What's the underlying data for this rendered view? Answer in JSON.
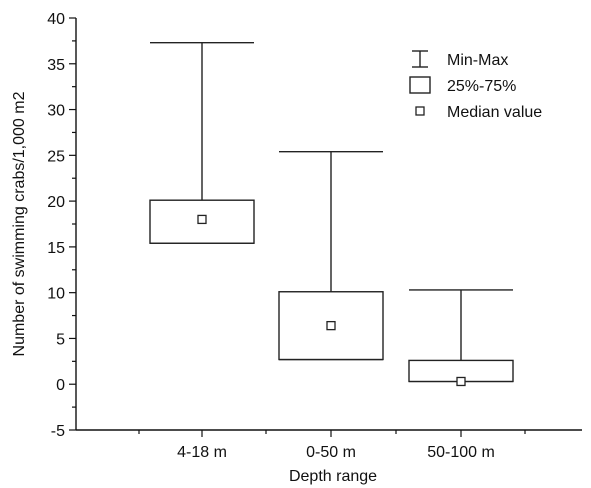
{
  "chart_data": {
    "type": "box",
    "xlabel": "Depth range",
    "ylabel": "Number of swimming crabs/1,000 m2",
    "ylim": [
      -5,
      40
    ],
    "yticks": [
      "-5",
      "0",
      "5",
      "10",
      "15",
      "20",
      "25",
      "30",
      "35",
      "40"
    ],
    "categories": [
      "4-18 m",
      "0-50 m",
      "50-100 m"
    ],
    "boxes": [
      {
        "category": "4-18 m",
        "min": 15.4,
        "q1": 15.4,
        "median": 18.0,
        "q3": 20.1,
        "max": 37.3
      },
      {
        "category": "0-50 m",
        "min": 2.7,
        "q1": 2.7,
        "median": 6.4,
        "q3": 10.1,
        "max": 25.4
      },
      {
        "category": "50-100 m",
        "min": 0.3,
        "q1": 0.3,
        "median": 0.3,
        "q3": 2.6,
        "max": 10.3
      }
    ],
    "legend": {
      "position": "top-right",
      "entries": [
        {
          "label": "Min-Max",
          "symbol": "whisker"
        },
        {
          "label": "25%-75%",
          "symbol": "box"
        },
        {
          "label": "Median value",
          "symbol": "median"
        }
      ]
    },
    "grid": false
  }
}
